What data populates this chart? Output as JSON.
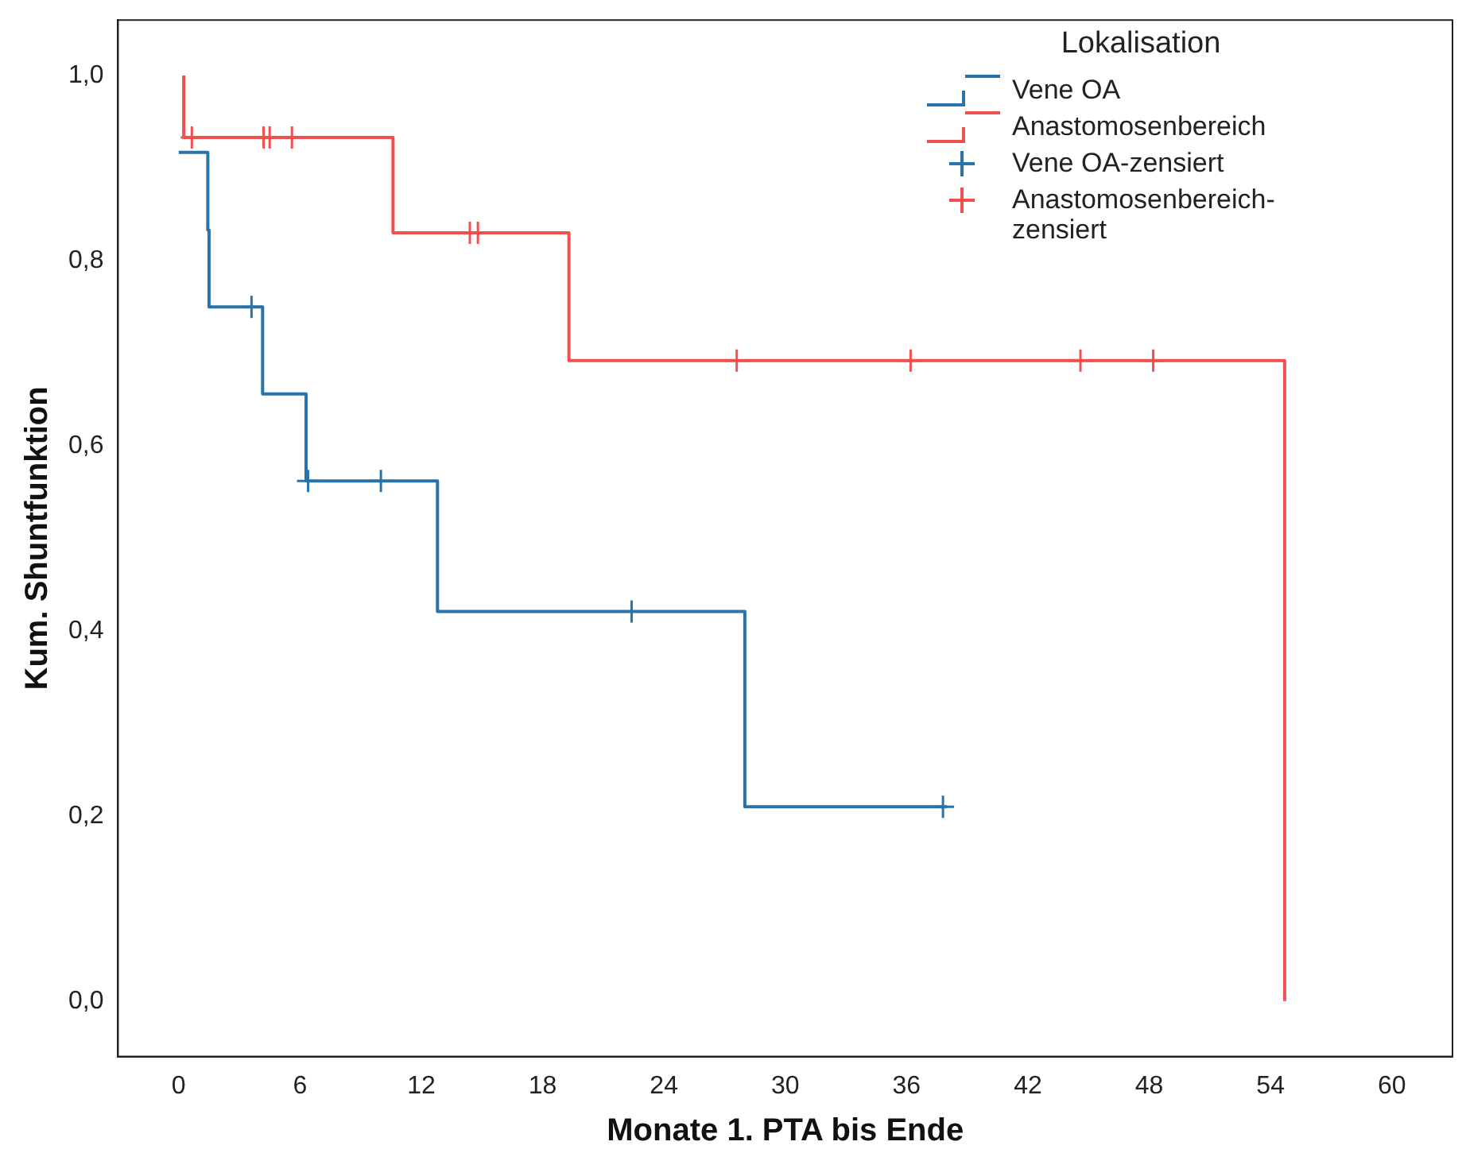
{
  "chart_data": {
    "type": "step",
    "xlabel": "Monate 1. PTA bis Ende",
    "ylabel": "Kum. Shuntfunktion",
    "legend_title": "Lokalisation",
    "legend": "top right",
    "grid": false,
    "xlim": [
      -3,
      63
    ],
    "xticks": [
      0,
      6,
      12,
      18,
      24,
      30,
      36,
      42,
      48,
      54,
      60
    ],
    "ylim": [
      -0.06,
      1.06
    ],
    "yticks": [
      {
        "value": 0,
        "label": "0,0"
      },
      {
        "value": 0.2,
        "label": "0,2"
      },
      {
        "value": 0.4,
        "label": "0,4"
      },
      {
        "value": 0.6,
        "label": "0,6"
      },
      {
        "value": 0.8,
        "label": "0,8"
      },
      {
        "value": 1,
        "label": "1,0"
      }
    ],
    "series": [
      {
        "name": "Vene OA",
        "color": "#2a73a8",
        "x": [
          0,
          1.44,
          1.5,
          4.15,
          6.3,
          12.8,
          28,
          38
        ],
        "values": [
          0.917,
          0.833,
          0.75,
          0.656,
          0.562,
          0.421,
          0.21,
          0.21
        ]
      },
      {
        "name": "Anastomosenbereich",
        "color": "#f05050",
        "x": [
          0.25,
          0.25,
          10.6,
          19.3,
          54.7
        ],
        "values": [
          1.0,
          0.933,
          0.83,
          0.692,
          0.0
        ]
      },
      {
        "name": "Vene OA-zensiert",
        "type": "scatter",
        "marker": "cross",
        "color": "#2a73a8",
        "x": [
          3.6,
          6.4,
          10,
          22.4,
          37.8
        ],
        "values": [
          0.75,
          0.562,
          0.562,
          0.421,
          0.21
        ]
      },
      {
        "name": "Anastomosenbereich-zensiert",
        "type": "scatter",
        "marker": "cross",
        "color": "#f05050",
        "x": [
          0.65,
          4.2,
          4.5,
          5.6,
          14.4,
          14.8,
          27.6,
          36.2,
          44.6,
          48.2
        ],
        "values": [
          0.933,
          0.933,
          0.933,
          0.933,
          0.83,
          0.83,
          0.692,
          0.692,
          0.692,
          0.692
        ]
      }
    ]
  }
}
